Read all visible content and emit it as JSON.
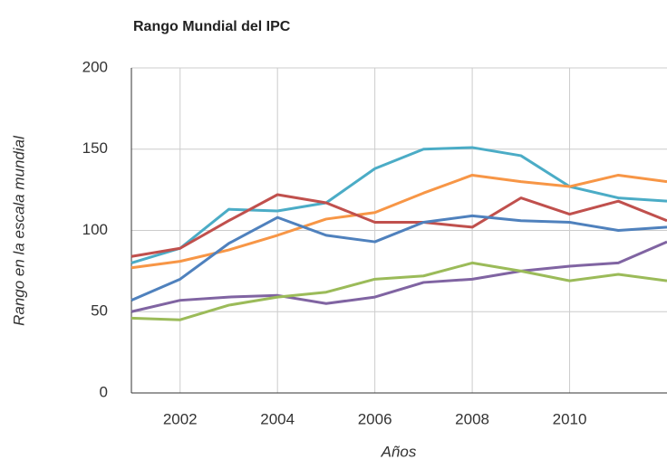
{
  "chart_data": {
    "type": "line",
    "title": "Rango Mundial del IPC",
    "x_label": "Años",
    "y_label": "Rango en la escala mundial",
    "x": [
      2001,
      2002,
      2003,
      2004,
      2005,
      2006,
      2007,
      2008,
      2009,
      2010,
      2011,
      2012
    ],
    "series": [
      {
        "color": "#4bacc6",
        "values": [
          80,
          89,
          113,
          112,
          117,
          138,
          150,
          151,
          146,
          127,
          120,
          118
        ]
      },
      {
        "color": "#f79646",
        "values": [
          77,
          81,
          88,
          97,
          107,
          111,
          123,
          134,
          130,
          127,
          134,
          130
        ]
      },
      {
        "color": "#c0504d",
        "values": [
          84,
          89,
          106,
          122,
          117,
          105,
          105,
          102,
          120,
          110,
          118,
          106
        ]
      },
      {
        "color": "#4f81bd",
        "values": [
          57,
          70,
          92,
          108,
          97,
          93,
          105,
          109,
          106,
          105,
          100,
          102
        ]
      },
      {
        "color": "#8064a2",
        "values": [
          50,
          57,
          59,
          60,
          55,
          59,
          68,
          70,
          75,
          78,
          80,
          93
        ]
      },
      {
        "color": "#9bbb59",
        "values": [
          46,
          45,
          54,
          59,
          62,
          70,
          72,
          80,
          75,
          69,
          73,
          69
        ]
      }
    ],
    "xlim": [
      2001,
      2012
    ],
    "ylim": [
      0,
      200
    ],
    "xticks": [
      2002,
      2004,
      2006,
      2008,
      2010
    ],
    "yticks": [
      0,
      50,
      100,
      150,
      200
    ],
    "grid": true
  }
}
